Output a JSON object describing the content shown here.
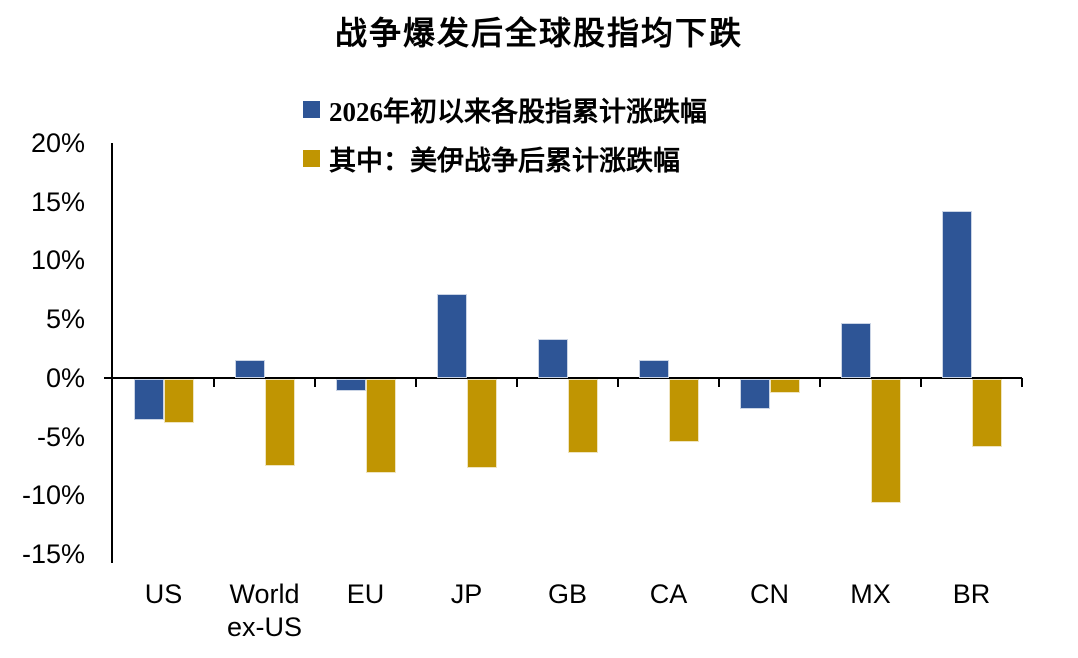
{
  "title": "战争爆发后全球股指均下跌",
  "legend": {
    "items": [
      {
        "label": "2026年初以来各股指累计涨跌幅",
        "color": "#2E5596"
      },
      {
        "label": "其中：美伊战争后累计涨跌幅",
        "color": "#C09502"
      }
    ]
  },
  "chart_data": {
    "type": "bar",
    "title": "战争爆发后全球股指均下跌",
    "categories": [
      "US",
      "World ex-US",
      "EU",
      "JP",
      "GB",
      "CA",
      "CN",
      "MX",
      "BR"
    ],
    "series": [
      {
        "name": "2026年初以来各股指累计涨跌幅",
        "color": "#2E5596",
        "values": [
          -3.5,
          1.5,
          -1.0,
          7.1,
          3.3,
          1.5,
          -2.6,
          4.7,
          14.2
        ]
      },
      {
        "name": "其中：美伊战争后累计涨跌幅",
        "color": "#C09502",
        "values": [
          -3.8,
          -7.4,
          -8.0,
          -7.6,
          -6.3,
          -5.4,
          -1.2,
          -10.6,
          -5.8
        ]
      }
    ],
    "ylim": [
      -15,
      20
    ],
    "ytick_step": 5,
    "ytick_labels": [
      "20%",
      "15%",
      "10%",
      "5%",
      "0%",
      "-5%",
      "-10%",
      "-15%"
    ],
    "unit": "%",
    "grid": false,
    "legend_position": "top-center",
    "bar_baseline": 0
  }
}
